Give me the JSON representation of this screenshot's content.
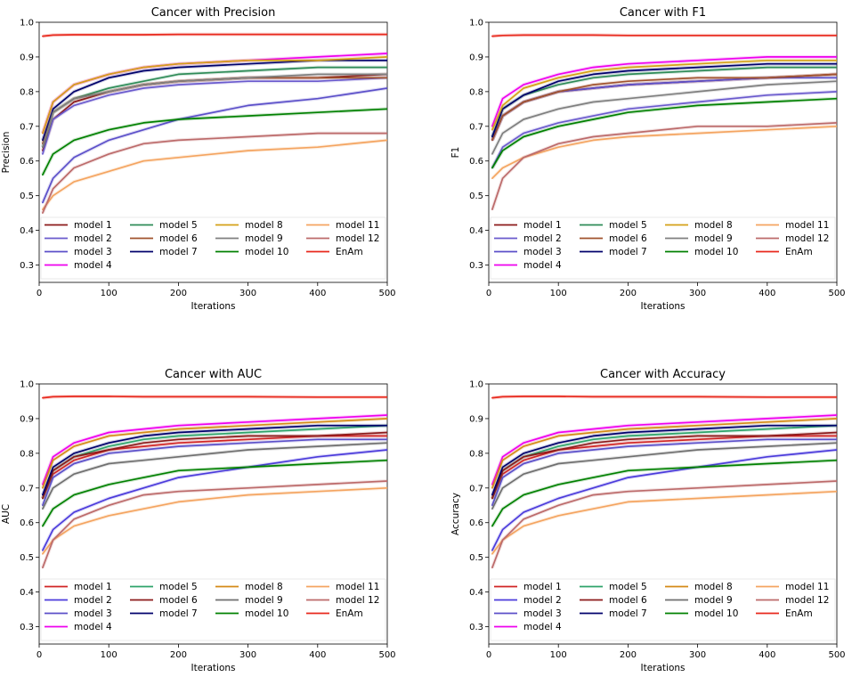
{
  "chart_data": [
    {
      "type": "line",
      "title": "Cancer with Precision",
      "xlabel": "Iterations",
      "ylabel": "Precision",
      "xlim": [
        0,
        500
      ],
      "ylim": [
        0.25,
        1.0
      ],
      "xticks": [
        "0",
        "100",
        "200",
        "300",
        "400",
        "500"
      ],
      "yticks": [
        "0.3",
        "0.4",
        "0.5",
        "0.6",
        "0.7",
        "0.8",
        "0.9",
        "1.0"
      ],
      "x": [
        5,
        20,
        50,
        100,
        150,
        200,
        300,
        400,
        500
      ],
      "series": [
        {
          "name": "model 1",
          "color": "#8b1a1a",
          "values": [
            0.63,
            0.72,
            0.77,
            0.8,
            0.82,
            0.83,
            0.84,
            0.84,
            0.85
          ]
        },
        {
          "name": "model 2",
          "color": "#6a5acd",
          "values": [
            0.62,
            0.72,
            0.76,
            0.79,
            0.81,
            0.82,
            0.83,
            0.83,
            0.84
          ]
        },
        {
          "name": "model 3",
          "color": "#5b4fc9",
          "values": [
            0.48,
            0.55,
            0.61,
            0.66,
            0.69,
            0.72,
            0.76,
            0.78,
            0.81
          ]
        },
        {
          "name": "model 4",
          "color": "#ee00ee",
          "values": [
            0.68,
            0.77,
            0.82,
            0.85,
            0.87,
            0.88,
            0.89,
            0.9,
            0.91
          ]
        },
        {
          "name": "model 5",
          "color": "#2e8b57",
          "values": [
            0.64,
            0.74,
            0.78,
            0.81,
            0.83,
            0.85,
            0.86,
            0.87,
            0.87
          ]
        },
        {
          "name": "model 6",
          "color": "#a0522d",
          "values": [
            0.65,
            0.74,
            0.78,
            0.8,
            0.82,
            0.83,
            0.84,
            0.84,
            0.84
          ]
        },
        {
          "name": "model 7",
          "color": "#00006b",
          "values": [
            0.66,
            0.75,
            0.8,
            0.84,
            0.86,
            0.87,
            0.88,
            0.89,
            0.89
          ]
        },
        {
          "name": "model 8",
          "color": "#d4a017",
          "values": [
            0.68,
            0.77,
            0.82,
            0.85,
            0.87,
            0.88,
            0.89,
            0.89,
            0.9
          ]
        },
        {
          "name": "model 9",
          "color": "#7f7f7f",
          "values": [
            0.64,
            0.74,
            0.78,
            0.8,
            0.82,
            0.83,
            0.84,
            0.85,
            0.85
          ]
        },
        {
          "name": "model 10",
          "color": "#008000",
          "values": [
            0.56,
            0.62,
            0.66,
            0.69,
            0.71,
            0.72,
            0.73,
            0.74,
            0.75
          ]
        },
        {
          "name": "model 11",
          "color": "#f4a460",
          "values": [
            0.46,
            0.5,
            0.54,
            0.57,
            0.6,
            0.61,
            0.63,
            0.64,
            0.66
          ]
        },
        {
          "name": "model 12",
          "color": "#bc6a6a",
          "values": [
            0.45,
            0.52,
            0.58,
            0.62,
            0.65,
            0.66,
            0.67,
            0.68,
            0.68
          ]
        },
        {
          "name": "EnAm",
          "color": "#e8281c",
          "values": [
            0.96,
            0.963,
            0.964,
            0.964,
            0.964,
            0.965,
            0.965,
            0.965,
            0.965
          ]
        }
      ]
    },
    {
      "type": "line",
      "title": "Cancer with F1",
      "xlabel": "Iterations",
      "ylabel": "F1",
      "xlim": [
        0,
        500
      ],
      "ylim": [
        0.25,
        1.0
      ],
      "xticks": [
        "0",
        "100",
        "200",
        "300",
        "400",
        "500"
      ],
      "yticks": [
        "0.3",
        "0.4",
        "0.5",
        "0.6",
        "0.7",
        "0.8",
        "0.9",
        "1.0"
      ],
      "x": [
        5,
        20,
        50,
        100,
        150,
        200,
        300,
        400,
        500
      ],
      "series": [
        {
          "name": "model 1",
          "color": "#8b1a1a",
          "values": [
            0.66,
            0.73,
            0.77,
            0.8,
            0.81,
            0.82,
            0.83,
            0.84,
            0.85
          ]
        },
        {
          "name": "model 2",
          "color": "#6a5acd",
          "values": [
            0.58,
            0.64,
            0.68,
            0.71,
            0.73,
            0.75,
            0.77,
            0.79,
            0.8
          ]
        },
        {
          "name": "model 3",
          "color": "#5b4fc9",
          "values": [
            0.66,
            0.73,
            0.77,
            0.8,
            0.81,
            0.82,
            0.83,
            0.84,
            0.84
          ]
        },
        {
          "name": "model 4",
          "color": "#ee00ee",
          "values": [
            0.7,
            0.78,
            0.82,
            0.85,
            0.87,
            0.88,
            0.89,
            0.9,
            0.9
          ]
        },
        {
          "name": "model 5",
          "color": "#2e8b57",
          "values": [
            0.67,
            0.75,
            0.79,
            0.82,
            0.84,
            0.85,
            0.86,
            0.87,
            0.87
          ]
        },
        {
          "name": "model 6",
          "color": "#a0522d",
          "values": [
            0.66,
            0.73,
            0.77,
            0.8,
            0.82,
            0.83,
            0.84,
            0.84,
            0.85
          ]
        },
        {
          "name": "model 7",
          "color": "#00006b",
          "values": [
            0.67,
            0.75,
            0.79,
            0.83,
            0.85,
            0.86,
            0.87,
            0.88,
            0.88
          ]
        },
        {
          "name": "model 8",
          "color": "#d4a017",
          "values": [
            0.69,
            0.76,
            0.81,
            0.84,
            0.86,
            0.87,
            0.88,
            0.89,
            0.89
          ]
        },
        {
          "name": "model 9",
          "color": "#7f7f7f",
          "values": [
            0.62,
            0.68,
            0.72,
            0.75,
            0.77,
            0.78,
            0.8,
            0.82,
            0.83
          ]
        },
        {
          "name": "model 10",
          "color": "#008000",
          "values": [
            0.58,
            0.63,
            0.67,
            0.7,
            0.72,
            0.74,
            0.76,
            0.77,
            0.78
          ]
        },
        {
          "name": "model 11",
          "color": "#f4a460",
          "values": [
            0.55,
            0.58,
            0.61,
            0.64,
            0.66,
            0.67,
            0.68,
            0.69,
            0.7
          ]
        },
        {
          "name": "model 12",
          "color": "#bc6a6a",
          "values": [
            0.46,
            0.55,
            0.61,
            0.65,
            0.67,
            0.68,
            0.7,
            0.7,
            0.71
          ]
        },
        {
          "name": "EnAm",
          "color": "#e8281c",
          "values": [
            0.96,
            0.962,
            0.963,
            0.963,
            0.963,
            0.962,
            0.962,
            0.962,
            0.962
          ]
        }
      ]
    },
    {
      "type": "line",
      "title": "Cancer with AUC",
      "xlabel": "Iterations",
      "ylabel": "AUC",
      "xlim": [
        0,
        500
      ],
      "ylim": [
        0.25,
        1.0
      ],
      "xticks": [
        "0",
        "100",
        "200",
        "300",
        "400",
        "500"
      ],
      "yticks": [
        "0.3",
        "0.4",
        "0.5",
        "0.6",
        "0.7",
        "0.8",
        "0.9",
        "1.0"
      ],
      "x": [
        5,
        20,
        50,
        100,
        150,
        200,
        300,
        400,
        500
      ],
      "series": [
        {
          "name": "model 1",
          "color": "#d02424",
          "values": [
            0.67,
            0.74,
            0.78,
            0.81,
            0.82,
            0.83,
            0.84,
            0.85,
            0.85
          ]
        },
        {
          "name": "model 2",
          "color": "#4b3bdb",
          "values": [
            0.52,
            0.58,
            0.63,
            0.67,
            0.7,
            0.73,
            0.76,
            0.79,
            0.81
          ]
        },
        {
          "name": "model 3",
          "color": "#5b4fc9",
          "values": [
            0.65,
            0.73,
            0.77,
            0.8,
            0.81,
            0.82,
            0.83,
            0.84,
            0.84
          ]
        },
        {
          "name": "model 4",
          "color": "#ee00ee",
          "values": [
            0.71,
            0.79,
            0.83,
            0.86,
            0.87,
            0.88,
            0.89,
            0.9,
            0.91
          ]
        },
        {
          "name": "model 5",
          "color": "#2ea36a",
          "values": [
            0.67,
            0.75,
            0.79,
            0.82,
            0.84,
            0.85,
            0.86,
            0.87,
            0.88
          ]
        },
        {
          "name": "model 6",
          "color": "#8b1a1a",
          "values": [
            0.67,
            0.75,
            0.79,
            0.81,
            0.83,
            0.84,
            0.85,
            0.85,
            0.86
          ]
        },
        {
          "name": "model 7",
          "color": "#00006b",
          "values": [
            0.68,
            0.76,
            0.8,
            0.83,
            0.85,
            0.86,
            0.87,
            0.88,
            0.88
          ]
        },
        {
          "name": "model 8",
          "color": "#d48a17",
          "values": [
            0.7,
            0.78,
            0.82,
            0.85,
            0.86,
            0.87,
            0.88,
            0.89,
            0.9
          ]
        },
        {
          "name": "model 9",
          "color": "#6f6f6f",
          "values": [
            0.64,
            0.7,
            0.74,
            0.77,
            0.78,
            0.79,
            0.81,
            0.82,
            0.83
          ]
        },
        {
          "name": "model 10",
          "color": "#008000",
          "values": [
            0.59,
            0.64,
            0.68,
            0.71,
            0.73,
            0.75,
            0.76,
            0.77,
            0.78
          ]
        },
        {
          "name": "model 11",
          "color": "#f4a460",
          "values": [
            0.51,
            0.55,
            0.59,
            0.62,
            0.64,
            0.66,
            0.68,
            0.69,
            0.7
          ]
        },
        {
          "name": "model 12",
          "color": "#bc6a6a",
          "values": [
            0.47,
            0.55,
            0.61,
            0.65,
            0.68,
            0.69,
            0.7,
            0.71,
            0.72
          ]
        },
        {
          "name": "EnAm",
          "color": "#e8281c",
          "values": [
            0.96,
            0.963,
            0.964,
            0.964,
            0.963,
            0.963,
            0.963,
            0.962,
            0.962
          ]
        }
      ]
    },
    {
      "type": "line",
      "title": "Cancer with Accuracy",
      "xlabel": "Iterations",
      "ylabel": "Accuracy",
      "xlim": [
        0,
        500
      ],
      "ylim": [
        0.25,
        1.0
      ],
      "xticks": [
        "0",
        "100",
        "200",
        "300",
        "400",
        "500"
      ],
      "yticks": [
        "0.3",
        "0.4",
        "0.5",
        "0.6",
        "0.7",
        "0.8",
        "0.9",
        "1.0"
      ],
      "x": [
        5,
        20,
        50,
        100,
        150,
        200,
        300,
        400,
        500
      ],
      "series": [
        {
          "name": "model 1",
          "color": "#d02424",
          "values": [
            0.67,
            0.74,
            0.78,
            0.81,
            0.82,
            0.83,
            0.84,
            0.85,
            0.85
          ]
        },
        {
          "name": "model 2",
          "color": "#4b3bdb",
          "values": [
            0.52,
            0.58,
            0.63,
            0.67,
            0.7,
            0.73,
            0.76,
            0.79,
            0.81
          ]
        },
        {
          "name": "model 3",
          "color": "#5b4fc9",
          "values": [
            0.65,
            0.73,
            0.77,
            0.8,
            0.81,
            0.82,
            0.83,
            0.84,
            0.84
          ]
        },
        {
          "name": "model 4",
          "color": "#ee00ee",
          "values": [
            0.71,
            0.79,
            0.83,
            0.86,
            0.87,
            0.88,
            0.89,
            0.9,
            0.91
          ]
        },
        {
          "name": "model 5",
          "color": "#2ea36a",
          "values": [
            0.67,
            0.75,
            0.79,
            0.82,
            0.84,
            0.85,
            0.86,
            0.87,
            0.88
          ]
        },
        {
          "name": "model 6",
          "color": "#8b1a1a",
          "values": [
            0.67,
            0.75,
            0.79,
            0.81,
            0.83,
            0.84,
            0.85,
            0.85,
            0.86
          ]
        },
        {
          "name": "model 7",
          "color": "#00006b",
          "values": [
            0.68,
            0.76,
            0.8,
            0.83,
            0.85,
            0.86,
            0.87,
            0.88,
            0.88
          ]
        },
        {
          "name": "model 8",
          "color": "#d48a17",
          "values": [
            0.7,
            0.78,
            0.82,
            0.85,
            0.86,
            0.87,
            0.88,
            0.89,
            0.9
          ]
        },
        {
          "name": "model 9",
          "color": "#6f6f6f",
          "values": [
            0.64,
            0.7,
            0.74,
            0.77,
            0.78,
            0.79,
            0.81,
            0.82,
            0.83
          ]
        },
        {
          "name": "model 10",
          "color": "#008000",
          "values": [
            0.59,
            0.64,
            0.68,
            0.71,
            0.73,
            0.75,
            0.76,
            0.77,
            0.78
          ]
        },
        {
          "name": "model 11",
          "color": "#f4a460",
          "values": [
            0.51,
            0.55,
            0.59,
            0.62,
            0.64,
            0.66,
            0.67,
            0.68,
            0.69
          ]
        },
        {
          "name": "model 12",
          "color": "#bc6a6a",
          "values": [
            0.47,
            0.55,
            0.61,
            0.65,
            0.68,
            0.69,
            0.7,
            0.71,
            0.72
          ]
        },
        {
          "name": "EnAm",
          "color": "#e8281c",
          "values": [
            0.96,
            0.963,
            0.964,
            0.964,
            0.963,
            0.963,
            0.963,
            0.962,
            0.962
          ]
        }
      ]
    }
  ]
}
